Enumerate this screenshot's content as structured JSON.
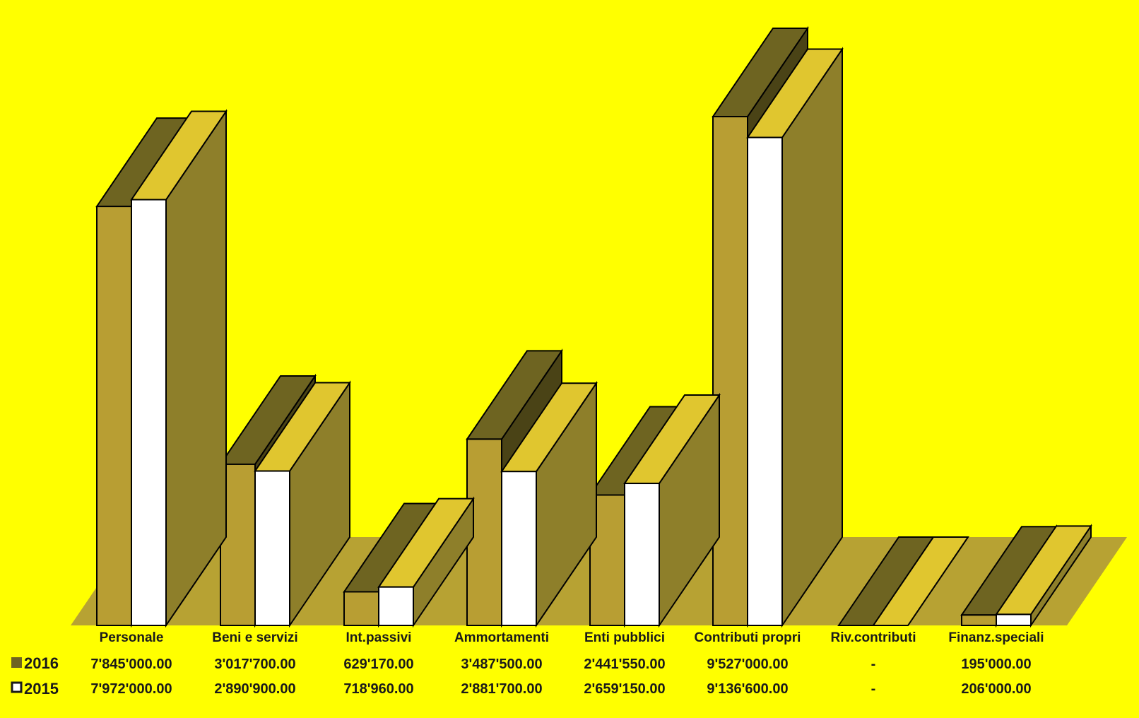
{
  "colors": {
    "background": "#ffff00",
    "floor": "#b7a233",
    "series_2016_front": "#b89e33",
    "series_2016_top": "#6e6421",
    "series_2016_side": "#4a4316",
    "series_2015_front": "#ffffff",
    "series_2015_top": "#e0c62f",
    "series_2015_side": "#8e7f2a"
  },
  "chart_data": {
    "type": "bar",
    "categories": [
      "Personale",
      "Beni e servizi",
      "Int.passivi",
      "Ammortamenti",
      "Enti pubblici",
      "Contributi propri",
      "Riv.contributi",
      "Finanz.speciali"
    ],
    "series": [
      {
        "name": "2016",
        "values": [
          7845000,
          3017700,
          629170,
          3487500,
          2441550,
          9527000,
          0,
          195000
        ],
        "labels": [
          "7'845'000.00",
          "3'017'700.00",
          "629'170.00",
          "3'487'500.00",
          "2'441'550.00",
          "9'527'000.00",
          "-",
          "195'000.00"
        ]
      },
      {
        "name": "2015",
        "values": [
          7972000,
          2890900,
          718960,
          2881700,
          2659150,
          9136600,
          0,
          206000
        ],
        "labels": [
          "7'972'000.00",
          "2'890'900.00",
          "718'960.00",
          "2'881'700.00",
          "2'659'150.00",
          "9'136'600.00",
          "-",
          "206'000.00"
        ]
      }
    ],
    "style": "3d-bar",
    "legend_position": "bottom-left",
    "grid": false,
    "ylim": [
      0,
      9527000
    ]
  }
}
